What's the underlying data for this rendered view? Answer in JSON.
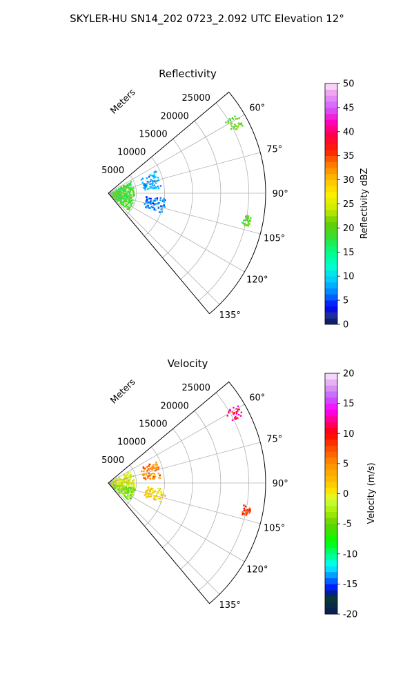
{
  "figure": {
    "suptitle": "SKYLER-HU  SN14_202  0723_2.092 UTC Elevation 12°"
  },
  "chart_data": [
    {
      "type": "polar-sector",
      "title": "Reflectivity",
      "radial_label": "Meters",
      "theta_range_deg": [
        50,
        140
      ],
      "r_range": [
        0,
        28000
      ],
      "r_ticks": [
        5000,
        10000,
        15000,
        20000,
        25000
      ],
      "theta_ticks": [
        60,
        75,
        90,
        105,
        120,
        135
      ],
      "theta_tick_labels": [
        "60°",
        "75°",
        "90°",
        "105°",
        "120°",
        "135°"
      ],
      "r_tick_labels": [
        "5000",
        "10000",
        "15000",
        "20000",
        "25000"
      ],
      "grid": true,
      "colorbar": {
        "label": "Reflectivity dBZ",
        "vmin": 0,
        "vmax": 50,
        "ticks": [
          0,
          5,
          10,
          15,
          20,
          25,
          30,
          35,
          40,
          45,
          50
        ],
        "tick_labels": [
          "0",
          "5",
          "10",
          "15",
          "20",
          "25",
          "30",
          "35",
          "40",
          "45",
          "50"
        ]
      },
      "echo_regions": [
        {
          "theta": [
            60,
            130
          ],
          "r": [
            300,
            4500
          ],
          "value": 19
        },
        {
          "theta": [
            64,
            84
          ],
          "r": [
            6200,
            9300
          ],
          "value": 8
        },
        {
          "theta": [
            94,
            110
          ],
          "r": [
            6500,
            10200
          ],
          "value": 6
        },
        {
          "theta": [
            58,
            63
          ],
          "r": [
            24300,
            26800
          ],
          "value": 20
        },
        {
          "theta": [
            99,
            103
          ],
          "r": [
            24200,
            25600
          ],
          "value": 19
        }
      ]
    },
    {
      "type": "polar-sector",
      "title": "Velocity",
      "radial_label": "Meters",
      "theta_range_deg": [
        50,
        140
      ],
      "r_range": [
        0,
        28000
      ],
      "r_ticks": [
        5000,
        10000,
        15000,
        20000,
        25000
      ],
      "theta_ticks": [
        60,
        75,
        90,
        105,
        120,
        135
      ],
      "theta_tick_labels": [
        "60°",
        "75°",
        "90°",
        "105°",
        "120°",
        "135°"
      ],
      "r_tick_labels": [
        "5000",
        "10000",
        "15000",
        "20000",
        "25000"
      ],
      "grid": true,
      "colorbar": {
        "label": "Velocity (m/s)",
        "vmin": -20,
        "vmax": 20,
        "ticks": [
          -20,
          -15,
          -10,
          -5,
          0,
          5,
          10,
          15,
          20
        ],
        "tick_labels": [
          "-20",
          "-15",
          "-10",
          "-5",
          "0",
          "5",
          "10",
          "15",
          "20"
        ]
      },
      "echo_regions": [
        {
          "theta": [
            60,
            100
          ],
          "r": [
            300,
            4500
          ],
          "value": -1
        },
        {
          "theta": [
            100,
            130
          ],
          "r": [
            300,
            4800
          ],
          "value": -4
        },
        {
          "theta": [
            64,
            84
          ],
          "r": [
            6200,
            9300
          ],
          "value": 6
        },
        {
          "theta": [
            94,
            110
          ],
          "r": [
            6500,
            10200
          ],
          "value": 1
        },
        {
          "theta": [
            58,
            63
          ],
          "r": [
            24300,
            26800
          ],
          "value": 11
        },
        {
          "theta": [
            99,
            103
          ],
          "r": [
            24200,
            25600
          ],
          "value": 8
        }
      ]
    }
  ]
}
